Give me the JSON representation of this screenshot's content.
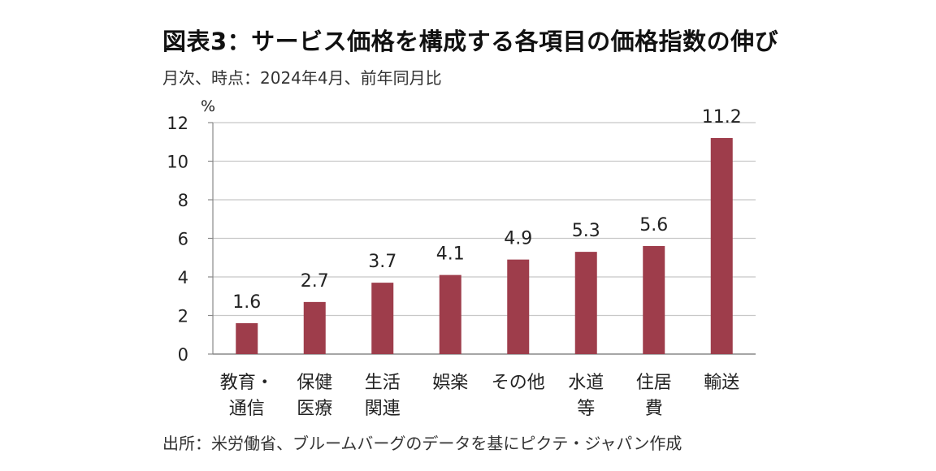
{
  "title": "図表3：サービス価格を構成する各項目の価格指数の伸び",
  "subtitle": "月次、時点：2024年4月、前年同月比",
  "source": "出所：米労働省、ブルームバーグのデータを基にピクテ・ジャパン作成",
  "chart_data": {
    "type": "bar",
    "unit_label": "%",
    "categories": [
      [
        "教育・",
        "通信"
      ],
      [
        "保健",
        "医療"
      ],
      [
        "生活",
        "関連"
      ],
      [
        "娯楽"
      ],
      [
        "その他"
      ],
      [
        "水道",
        "等"
      ],
      [
        "住居",
        "費"
      ],
      [
        "輸送"
      ]
    ],
    "values": [
      1.6,
      2.7,
      3.7,
      4.1,
      4.9,
      5.3,
      5.6,
      11.2
    ],
    "value_labels": [
      "1.6",
      "2.7",
      "3.7",
      "4.1",
      "4.9",
      "5.3",
      "5.6",
      "11.2"
    ],
    "ylim": [
      0,
      12
    ],
    "yticks": [
      "0",
      "2",
      "4",
      "6",
      "8",
      "10",
      "12"
    ],
    "grid": true,
    "bar_color": "#9e3d4b",
    "grid_color": "#c8c8c8"
  }
}
